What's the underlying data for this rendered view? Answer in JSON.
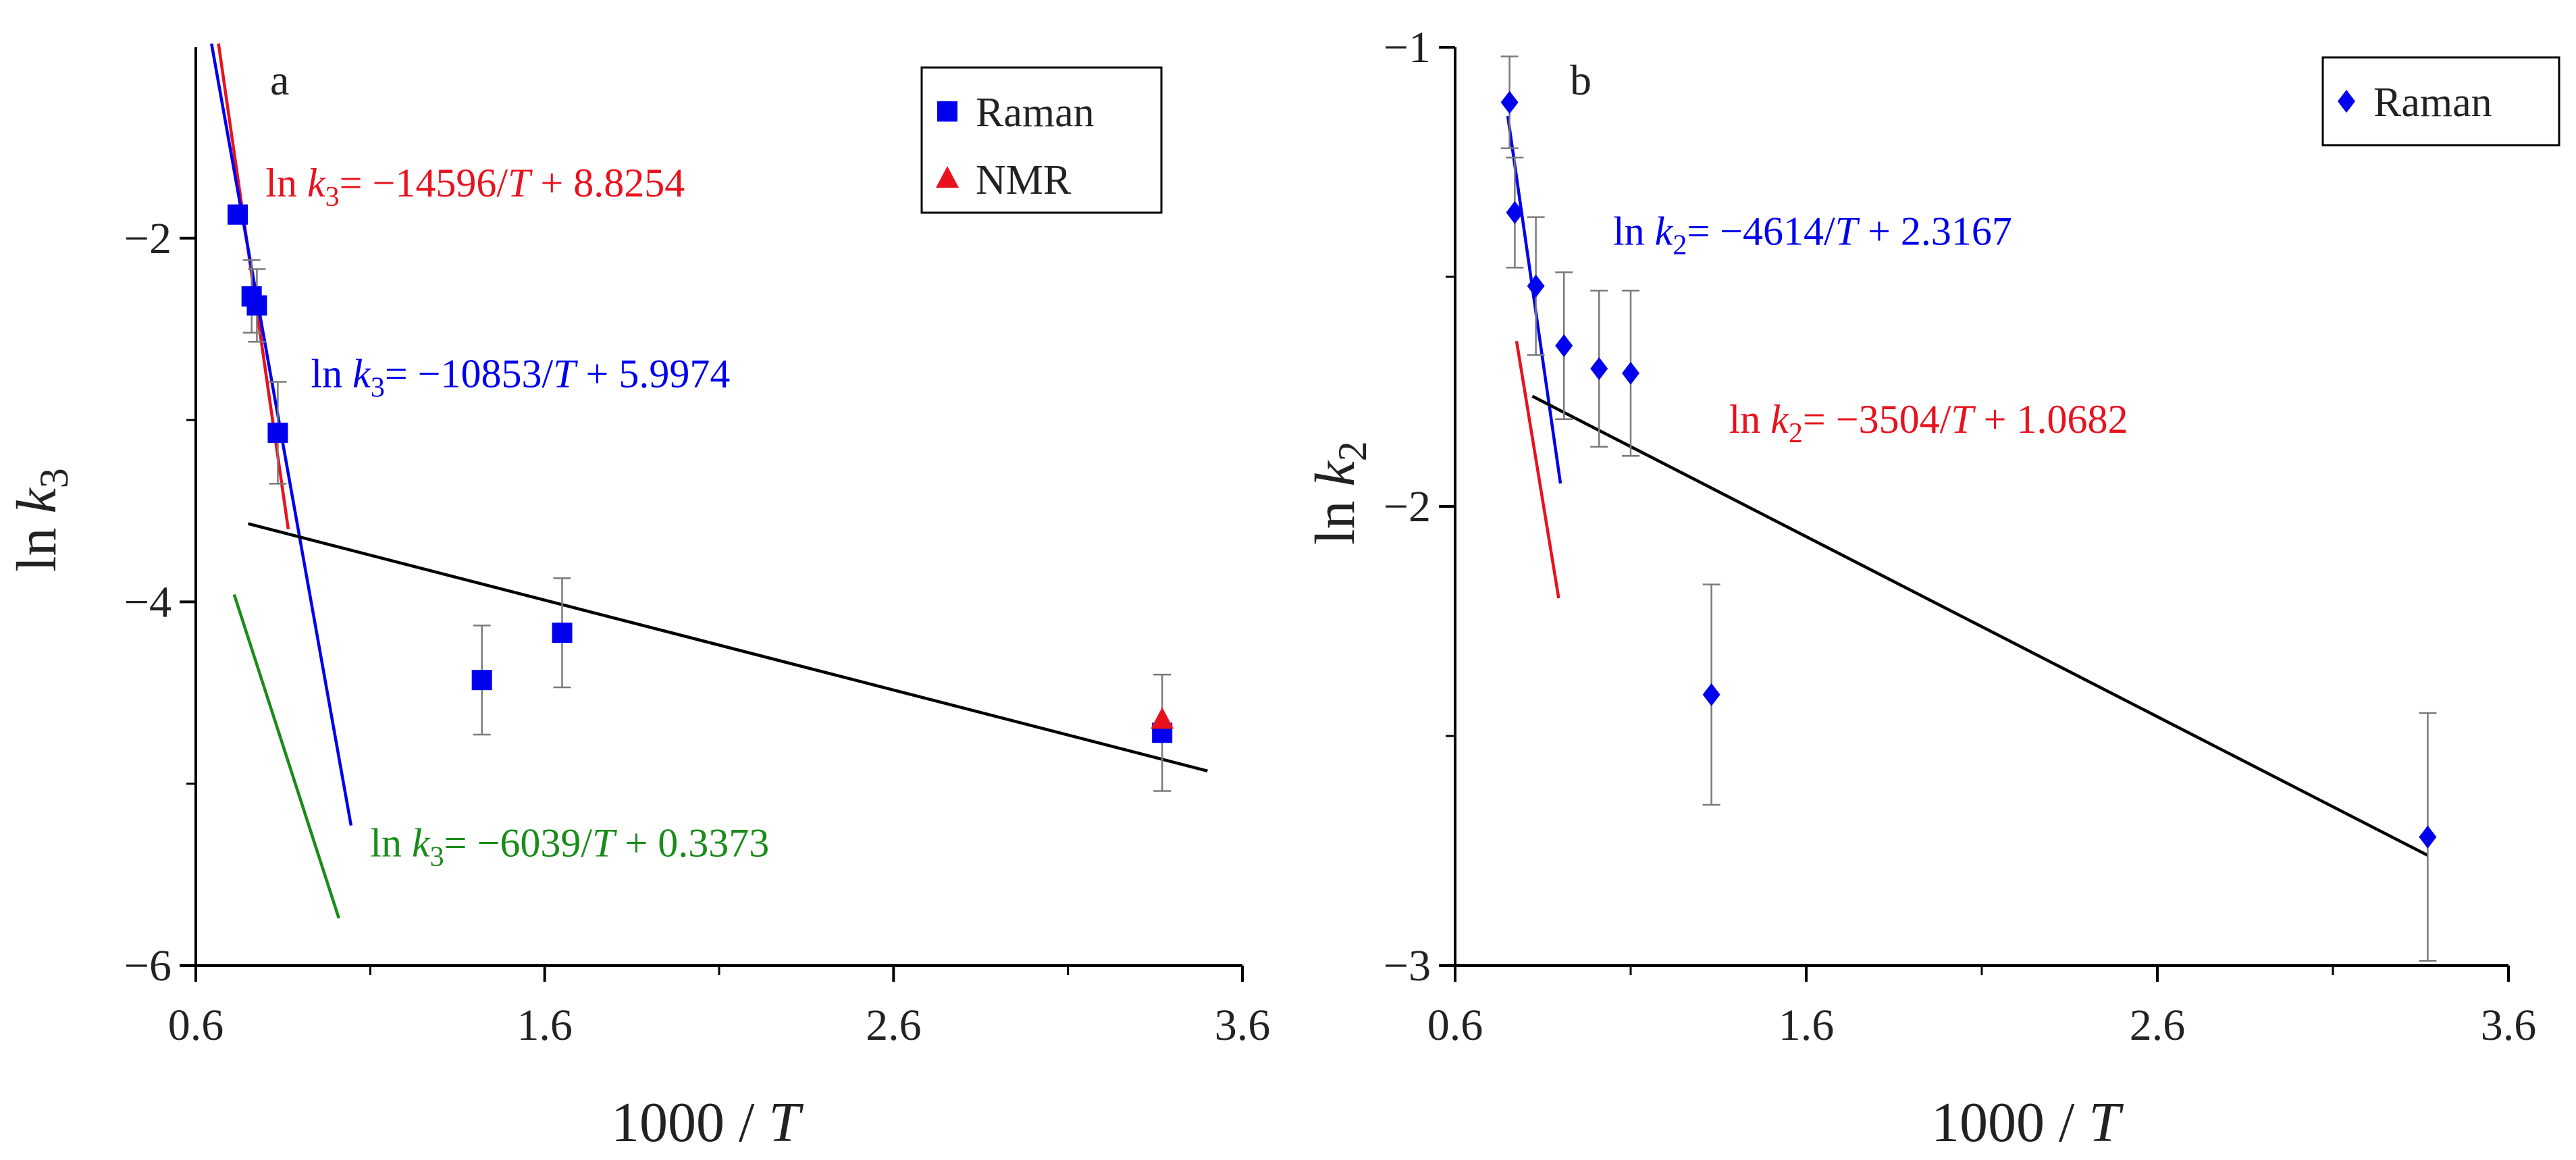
{
  "chart_data": [
    {
      "panel": "a",
      "type": "scatter",
      "xlabel_prefix": "1000 / ",
      "xlabel_var": "T",
      "ylabel_main": "ln ",
      "ylabel_var": "k",
      "ylabel_sub": "3",
      "xlim": [
        0.6,
        3.6
      ],
      "ylim": [
        -6,
        -0.95
      ],
      "xticks": [
        0.6,
        1.6,
        2.6,
        3.6
      ],
      "xtick_labels": [
        "0.6",
        "1.6",
        "2.6",
        "3.6"
      ],
      "xticks_minor": [
        1.1,
        2.1,
        3.1
      ],
      "yticks": [
        -6,
        -4,
        -2
      ],
      "ytick_labels": [
        "−6",
        "−4",
        "−2"
      ],
      "yticks_minor": [
        -5,
        -3
      ],
      "legend": [
        {
          "label": "Raman",
          "marker": "square",
          "color": "#0000ee"
        },
        {
          "label": "NMR",
          "marker": "triangle",
          "color": "#e8121e"
        }
      ],
      "series": [
        {
          "name": "Raman",
          "marker": "square",
          "color": "#0000ee",
          "points": [
            {
              "x": 0.72,
              "y": -1.87,
              "err": 0
            },
            {
              "x": 0.76,
              "y": -2.32,
              "err": 0.2
            },
            {
              "x": 0.775,
              "y": -2.37,
              "err": 0.2
            },
            {
              "x": 0.835,
              "y": -3.07,
              "err": 0.28
            },
            {
              "x": 1.42,
              "y": -4.43,
              "err": 0.3
            },
            {
              "x": 1.65,
              "y": -4.17,
              "err": 0.3
            },
            {
              "x": 3.37,
              "y": -4.72,
              "err": 0.32
            }
          ]
        },
        {
          "name": "NMR",
          "marker": "triangle",
          "color": "#e8121e",
          "points": [
            {
              "x": 3.37,
              "y": -4.65,
              "err": 0
            }
          ]
        }
      ],
      "lines": [
        {
          "color": "#e8121e",
          "x": [
            0.665,
            0.865
          ],
          "y": [
            -0.93,
            -3.6
          ]
        },
        {
          "color": "#0000ee",
          "x": [
            0.645,
            1.045
          ],
          "y": [
            -0.93,
            -5.23
          ]
        },
        {
          "color": "#1a8c1a",
          "x": [
            0.71,
            1.01
          ],
          "y": [
            -3.96,
            -5.74
          ]
        },
        {
          "color": "#000000",
          "x": [
            0.75,
            3.5
          ],
          "y": [
            -3.57,
            -4.93
          ]
        }
      ],
      "equations": [
        {
          "color": "#e8121e",
          "x": 0.8,
          "y": -1.77,
          "prefix": "ln ",
          "var": "k",
          "sub": "3",
          "mid": "= −14596/",
          "tvar": "T",
          "suffix": " + 8.8254"
        },
        {
          "color": "#0000ee",
          "x": 0.93,
          "y": -2.82,
          "prefix": "ln ",
          "var": "k",
          "sub": "3",
          "mid": "= −10853/",
          "tvar": "T",
          "suffix": " + 5.9974"
        },
        {
          "color": "#1a8c1a",
          "x": 1.1,
          "y": -5.4,
          "prefix": "ln ",
          "var": "k",
          "sub": "3",
          "mid": "= −6039/",
          "tvar": "T",
          "suffix": " + 0.3373"
        }
      ]
    },
    {
      "panel": "b",
      "type": "scatter",
      "xlabel_prefix": "1000 / ",
      "xlabel_var": "T",
      "ylabel_main": "ln ",
      "ylabel_var": "k",
      "ylabel_sub": "2",
      "xlim": [
        0.6,
        3.6
      ],
      "ylim": [
        -3,
        -1
      ],
      "xticks": [
        0.6,
        1.6,
        2.6,
        3.6
      ],
      "xtick_labels": [
        "0.6",
        "1.6",
        "2.6",
        "3.6"
      ],
      "xticks_minor": [
        1.1,
        2.1,
        3.1
      ],
      "yticks": [
        -3,
        -2,
        -1
      ],
      "ytick_labels": [
        "−3",
        "−2",
        "−1"
      ],
      "yticks_minor": [
        -2.5,
        -1.5
      ],
      "legend": [
        {
          "label": "Raman",
          "marker": "diamond",
          "color": "#0000ee"
        }
      ],
      "series": [
        {
          "name": "Raman",
          "marker": "diamond",
          "color": "#0000ee",
          "points": [
            {
              "x": 0.755,
              "y": -1.12,
              "err": 0.1
            },
            {
              "x": 0.77,
              "y": -1.36,
              "err": 0.12
            },
            {
              "x": 0.83,
              "y": -1.52,
              "err": 0.15
            },
            {
              "x": 0.91,
              "y": -1.65,
              "err": 0.16
            },
            {
              "x": 1.01,
              "y": -1.7,
              "err": 0.17
            },
            {
              "x": 1.1,
              "y": -1.71,
              "err": 0.18
            },
            {
              "x": 1.33,
              "y": -2.41,
              "err": 0.24
            },
            {
              "x": 3.37,
              "y": -2.72,
              "err": 0.27
            }
          ]
        }
      ],
      "lines": [
        {
          "color": "#0000ee",
          "x": [
            0.75,
            0.9
          ],
          "y": [
            -1.15,
            -1.95
          ]
        },
        {
          "color": "#e8121e",
          "x": [
            0.775,
            0.895
          ],
          "y": [
            -1.64,
            -2.2
          ]
        },
        {
          "color": "#000000",
          "x": [
            0.82,
            3.37
          ],
          "y": [
            -1.76,
            -2.76
          ]
        }
      ],
      "equations": [
        {
          "color": "#0000ee",
          "x": 1.05,
          "y": -1.43,
          "prefix": "ln ",
          "var": "k",
          "sub": "2",
          "mid": "= −4614/",
          "tvar": "T",
          "suffix": " + 2.3167"
        },
        {
          "color": "#e8121e",
          "x": 1.38,
          "y": -1.84,
          "prefix": "ln ",
          "var": "k",
          "sub": "2",
          "mid": "= −3504/",
          "tvar": "T",
          "suffix": " + 1.0682"
        }
      ]
    }
  ]
}
